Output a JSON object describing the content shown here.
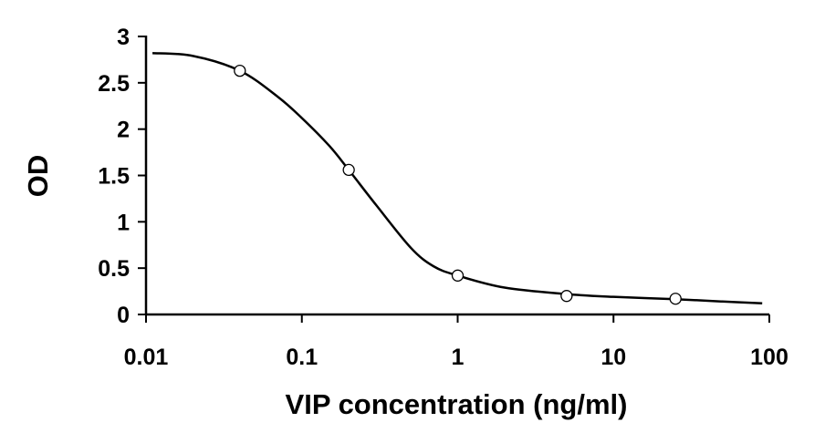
{
  "chart_data": {
    "type": "scatter",
    "title": "",
    "xlabel": "VIP concentration (ng/ml)",
    "ylabel": "OD",
    "x_scale": "log",
    "xlim": [
      0.01,
      100
    ],
    "ylim": [
      0,
      3
    ],
    "x_ticks": [
      0.01,
      0.1,
      1,
      10,
      100
    ],
    "x_tick_labels": [
      "0.01",
      "0.1",
      "1",
      "10",
      "100"
    ],
    "y_ticks": [
      0,
      0.5,
      1,
      1.5,
      2,
      2.5,
      3
    ],
    "y_tick_labels": [
      "0",
      "0.5",
      "1",
      "1.5",
      "2",
      "2.5",
      "3"
    ],
    "grid": false,
    "legend": "none",
    "points": {
      "x": [
        0.04,
        0.2,
        1,
        5,
        25
      ],
      "y": [
        2.63,
        1.56,
        0.42,
        0.2,
        0.17
      ]
    },
    "curve": {
      "x": [
        0.011,
        0.02,
        0.04,
        0.07,
        0.1,
        0.15,
        0.2,
        0.3,
        0.5,
        0.7,
        1,
        2,
        5,
        10,
        25,
        50,
        90
      ],
      "y": [
        2.82,
        2.79,
        2.63,
        2.35,
        2.12,
        1.82,
        1.56,
        1.18,
        0.72,
        0.52,
        0.42,
        0.29,
        0.22,
        0.19,
        0.165,
        0.14,
        0.12
      ]
    }
  }
}
